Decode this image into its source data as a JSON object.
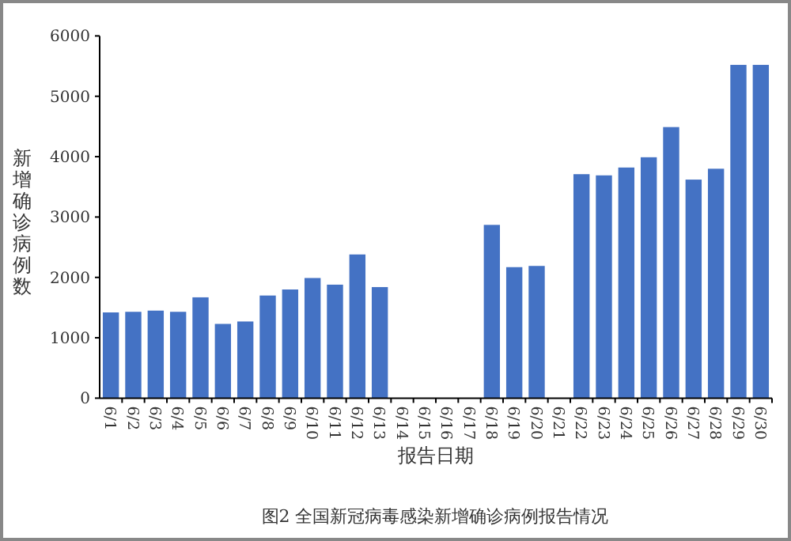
{
  "chart_data": {
    "type": "bar",
    "title": "图2 全国新冠病毒感染新增确诊病例报告情况",
    "xlabel": "报告日期",
    "ylabel": "新增确诊病例数",
    "color": "#4472c4",
    "categories": [
      "6/1",
      "6/2",
      "6/3",
      "6/4",
      "6/5",
      "6/6",
      "6/7",
      "6/8",
      "6/9",
      "6/10",
      "6/11",
      "6/12",
      "6/13",
      "6/14",
      "6/15",
      "6/16",
      "6/17",
      "6/18",
      "6/19",
      "6/20",
      "6/21",
      "6/22",
      "6/23",
      "6/24",
      "6/25",
      "6/26",
      "6/27",
      "6/28",
      "6/29",
      "6/30"
    ],
    "values": [
      1420,
      1430,
      1450,
      1430,
      1670,
      1230,
      1270,
      1700,
      1800,
      1990,
      1880,
      2380,
      1840,
      null,
      null,
      null,
      null,
      2870,
      2170,
      2190,
      null,
      3710,
      3690,
      3820,
      3990,
      4490,
      3620,
      3800,
      5520,
      5520
    ],
    "ylim": [
      0,
      6000
    ],
    "yticks": [
      0,
      1000,
      2000,
      3000,
      4000,
      5000,
      6000
    ],
    "grid": false
  }
}
